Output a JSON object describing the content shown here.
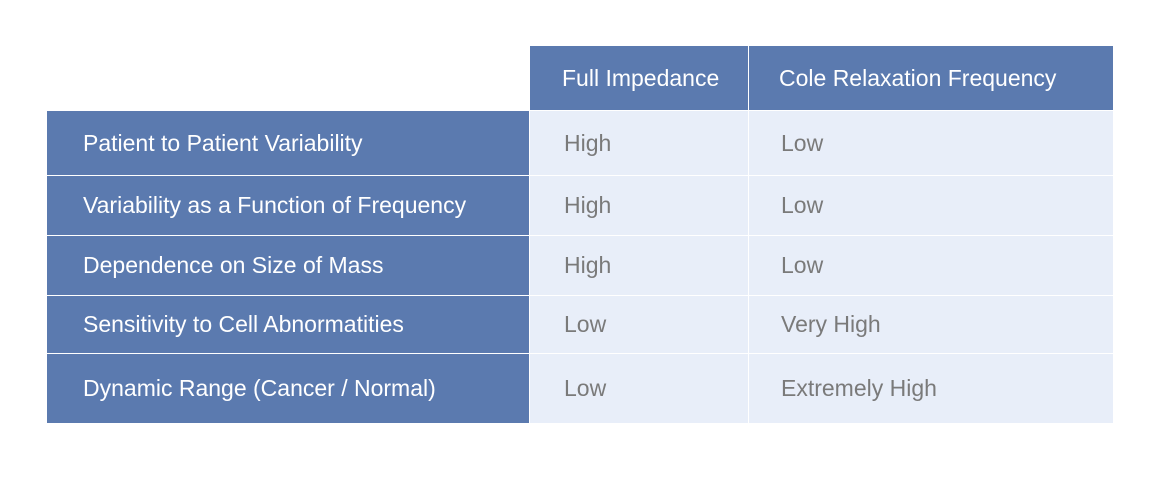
{
  "table": {
    "headers": [
      "",
      "Full Impedance",
      "Cole Relaxation Frequency"
    ],
    "rows": [
      {
        "label": "Patient to Patient Variability",
        "full_impedance": "High",
        "cole": "Low"
      },
      {
        "label": "Variability as a Function of Frequency",
        "full_impedance": "High",
        "cole": "Low"
      },
      {
        "label": "Dependence on Size of Mass",
        "full_impedance": "High",
        "cole": "Low"
      },
      {
        "label": "Sensitivity to Cell Abnormatities",
        "full_impedance": "Low",
        "cole": "Very High"
      },
      {
        "label": "Dynamic Range (Cancer / Normal)",
        "full_impedance": "Low",
        "cole": "Extremely High"
      }
    ]
  },
  "colors": {
    "header_bg": "#5b7aaf",
    "cell_bg": "#e8eef9",
    "cell_text": "#7a7a7a"
  }
}
